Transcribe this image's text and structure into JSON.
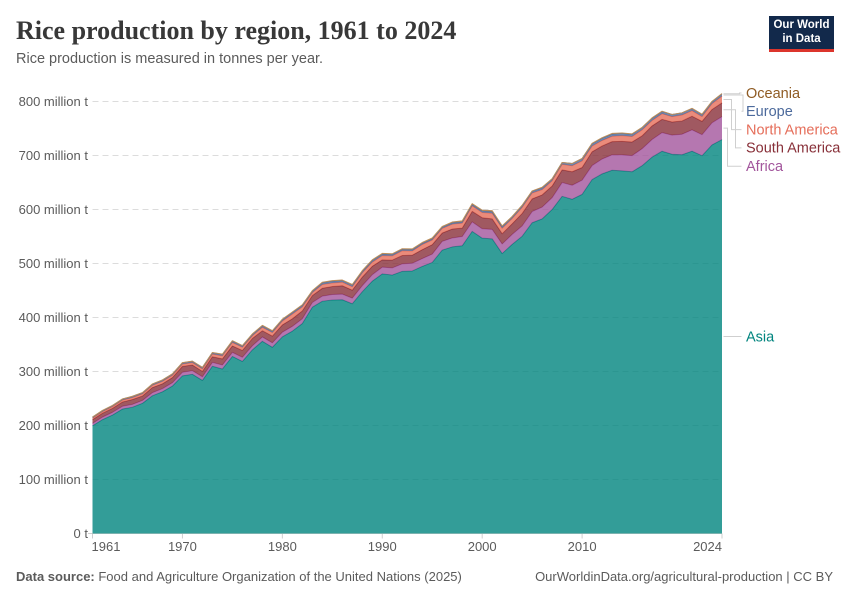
{
  "header": {
    "title": "Rice production by region, 1961 to 2024",
    "subtitle": "Rice production is measured in tonnes per year."
  },
  "logo": {
    "line1": "Our World",
    "line2": "in Data",
    "bg_color": "#12294B",
    "accent_color": "#DC352C"
  },
  "footer": {
    "source_label": "Data source:",
    "source_text": " Food and Agriculture Organization of the United Nations (2025)",
    "credit": "OurWorldinData.org/agricultural-production | CC BY"
  },
  "chart_data": {
    "type": "area",
    "stacked": true,
    "title": "Rice production by region, 1961 to 2024",
    "xlabel": "",
    "ylabel": "",
    "unit": "tonnes per year",
    "x": [
      1961,
      1962,
      1963,
      1964,
      1965,
      1966,
      1967,
      1968,
      1969,
      1970,
      1971,
      1972,
      1973,
      1974,
      1975,
      1976,
      1977,
      1978,
      1979,
      1980,
      1981,
      1982,
      1983,
      1984,
      1985,
      1986,
      1987,
      1988,
      1989,
      1990,
      1991,
      1992,
      1993,
      1994,
      1995,
      1996,
      1997,
      1998,
      1999,
      2000,
      2001,
      2002,
      2003,
      2004,
      2005,
      2006,
      2007,
      2008,
      2009,
      2010,
      2011,
      2012,
      2013,
      2014,
      2015,
      2016,
      2017,
      2018,
      2019,
      2020,
      2021,
      2022,
      2023,
      2024
    ],
    "xlim": [
      1961,
      2024
    ],
    "ylim": [
      0,
      800
    ],
    "grid": "dashed horizontal",
    "legend_position": "right",
    "y_ticks": [
      0,
      100,
      200,
      300,
      400,
      500,
      600,
      700,
      800
    ],
    "y_tick_labels": [
      "0 t",
      "100 million t",
      "200 million t",
      "300 million t",
      "400 million t",
      "500 million t",
      "600 million t",
      "700 million t",
      "800 million t"
    ],
    "x_tick_labels": [
      "1961",
      "1970",
      "1980",
      "1990",
      "2000",
      "2010",
      "2024"
    ],
    "x_tick_years": [
      1961,
      1970,
      1980,
      1990,
      2000,
      2010,
      2024
    ],
    "value_unit": "million tonnes",
    "series": [
      {
        "name": "Asia",
        "color": "#00847E",
        "label_color": "#00847E",
        "values": [
          199.5,
          210.9,
          219.4,
          230.5,
          233.9,
          241.1,
          255.2,
          262.4,
          273.1,
          292.0,
          294.8,
          283.5,
          309.8,
          304.7,
          327.9,
          318.7,
          340.1,
          356.0,
          344.8,
          364.2,
          374.7,
          388.8,
          419.0,
          430.2,
          432.4,
          432.9,
          425.5,
          447.8,
          467.3,
          480.7,
          478.6,
          485.5,
          486.2,
          494.6,
          501.9,
          524.8,
          530.7,
          532.8,
          559.5,
          546.9,
          545.7,
          518.4,
          535.5,
          550.5,
          575.5,
          582.6,
          599.9,
          624.4,
          618.9,
          628.0,
          655.4,
          666.0,
          672.7,
          671.6,
          669.8,
          681.1,
          697.1,
          707.9,
          702.3,
          701.4,
          708.0,
          699.6,
          719.6,
          729.5
        ]
      },
      {
        "name": "Africa",
        "color": "#A2559C",
        "label_color": "#A2559C",
        "values": [
          4.4,
          4.6,
          4.9,
          5.1,
          5.3,
          5.3,
          5.7,
          5.8,
          6.1,
          6.5,
          6.7,
          6.7,
          7.0,
          7.4,
          7.5,
          7.6,
          7.6,
          8.0,
          8.3,
          8.6,
          8.9,
          8.9,
          8.8,
          9.4,
          10.1,
          10.4,
          10.4,
          11.2,
          12.0,
          12.6,
          13.2,
          13.9,
          14.2,
          14.5,
          15.5,
          16.2,
          16.6,
          17.2,
          17.6,
          17.4,
          17.5,
          17.8,
          18.5,
          19.2,
          20.7,
          21.9,
          22.0,
          25.5,
          26.0,
          26.3,
          26.0,
          27.5,
          28.5,
          29.5,
          30.0,
          31.5,
          32.5,
          34.5,
          35.5,
          38.0,
          39.5,
          39.0,
          41.0,
          42.5
        ]
      },
      {
        "name": "South America",
        "color": "#883039",
        "label_color": "#883039",
        "values": [
          6.9,
          7.3,
          7.5,
          8.0,
          9.0,
          8.3,
          9.4,
          9.0,
          9.6,
          11.0,
          10.5,
          10.0,
          10.6,
          11.2,
          12.0,
          12.7,
          13.5,
          11.5,
          12.5,
          13.5,
          14.0,
          14.5,
          12.8,
          14.5,
          14.8,
          15.5,
          14.7,
          15.8,
          15.5,
          13.5,
          14.5,
          15.5,
          15.0,
          16.5,
          17.5,
          15.5,
          16.5,
          15.5,
          19.5,
          20.5,
          19.5,
          19.0,
          19.5,
          23.0,
          23.5,
          22.5,
          21.5,
          23.5,
          25.0,
          23.5,
          25.5,
          24.2,
          24.5,
          25.0,
          25.3,
          23.8,
          25.2,
          24.6,
          24.2,
          24.6,
          25.3,
          24.6,
          24.6,
          25.5
        ]
      },
      {
        "name": "North America",
        "color": "#E56E5A",
        "label_color": "#E56E5A",
        "values": [
          2.7,
          3.0,
          3.1,
          3.3,
          3.5,
          3.8,
          4.1,
          4.6,
          4.2,
          4.2,
          4.4,
          4.6,
          4.8,
          5.7,
          6.3,
          6.0,
          5.0,
          6.4,
          6.4,
          7.1,
          8.8,
          7.5,
          5.4,
          7.0,
          6.7,
          6.6,
          6.4,
          7.9,
          7.7,
          7.8,
          7.9,
          8.6,
          7.8,
          9.6,
          8.6,
          8.5,
          9.0,
          9.2,
          10.1,
          9.6,
          10.3,
          10.0,
          9.9,
          11.2,
          10.9,
          9.8,
          9.9,
          10.2,
          11.2,
          12.2,
          10.6,
          10.1,
          9.9,
          10.8,
          10.2,
          11.0,
          10.0,
          10.4,
          9.9,
          11.0,
          10.2,
          9.0,
          10.8,
          12.5
        ]
      },
      {
        "name": "Europe",
        "color": "#4C6A9C",
        "label_color": "#4C6A9C",
        "values": [
          1.9,
          1.9,
          2.0,
          2.1,
          2.2,
          2.2,
          2.3,
          2.3,
          2.4,
          2.4,
          2.5,
          2.5,
          2.6,
          2.7,
          2.8,
          2.6,
          2.8,
          2.9,
          2.8,
          2.8,
          2.9,
          3.0,
          3.1,
          3.3,
          3.3,
          3.2,
          3.3,
          3.2,
          3.3,
          3.1,
          2.9,
          2.8,
          2.7,
          2.5,
          2.5,
          2.5,
          2.6,
          2.7,
          2.8,
          3.2,
          3.1,
          3.2,
          3.3,
          3.4,
          3.4,
          3.4,
          3.5,
          3.5,
          4.0,
          4.3,
          4.4,
          4.3,
          4.1,
          4.0,
          4.1,
          4.2,
          4.1,
          4.0,
          4.0,
          4.0,
          3.9,
          3.6,
          3.8,
          4.1
        ]
      },
      {
        "name": "Oceania",
        "color": "#BC8E5A",
        "label_color": "#8F5B23",
        "values": [
          0.16,
          0.18,
          0.19,
          0.2,
          0.22,
          0.24,
          0.26,
          0.3,
          0.28,
          0.3,
          0.33,
          0.4,
          0.33,
          0.45,
          0.5,
          0.5,
          0.6,
          0.67,
          0.75,
          0.73,
          0.85,
          0.9,
          0.6,
          0.9,
          0.9,
          0.75,
          0.8,
          0.85,
          1.0,
          0.95,
          0.9,
          1.1,
          1.1,
          1.2,
          1.2,
          1.0,
          1.4,
          1.45,
          1.4,
          1.1,
          1.8,
          1.3,
          0.4,
          0.55,
          0.35,
          1.0,
          0.17,
          0.02,
          0.07,
          0.2,
          0.73,
          0.95,
          1.2,
          0.85,
          0.7,
          0.28,
          0.82,
          0.64,
          0.06,
          0.05,
          0.43,
          0.69,
          0.5,
          0.6
        ]
      }
    ]
  }
}
